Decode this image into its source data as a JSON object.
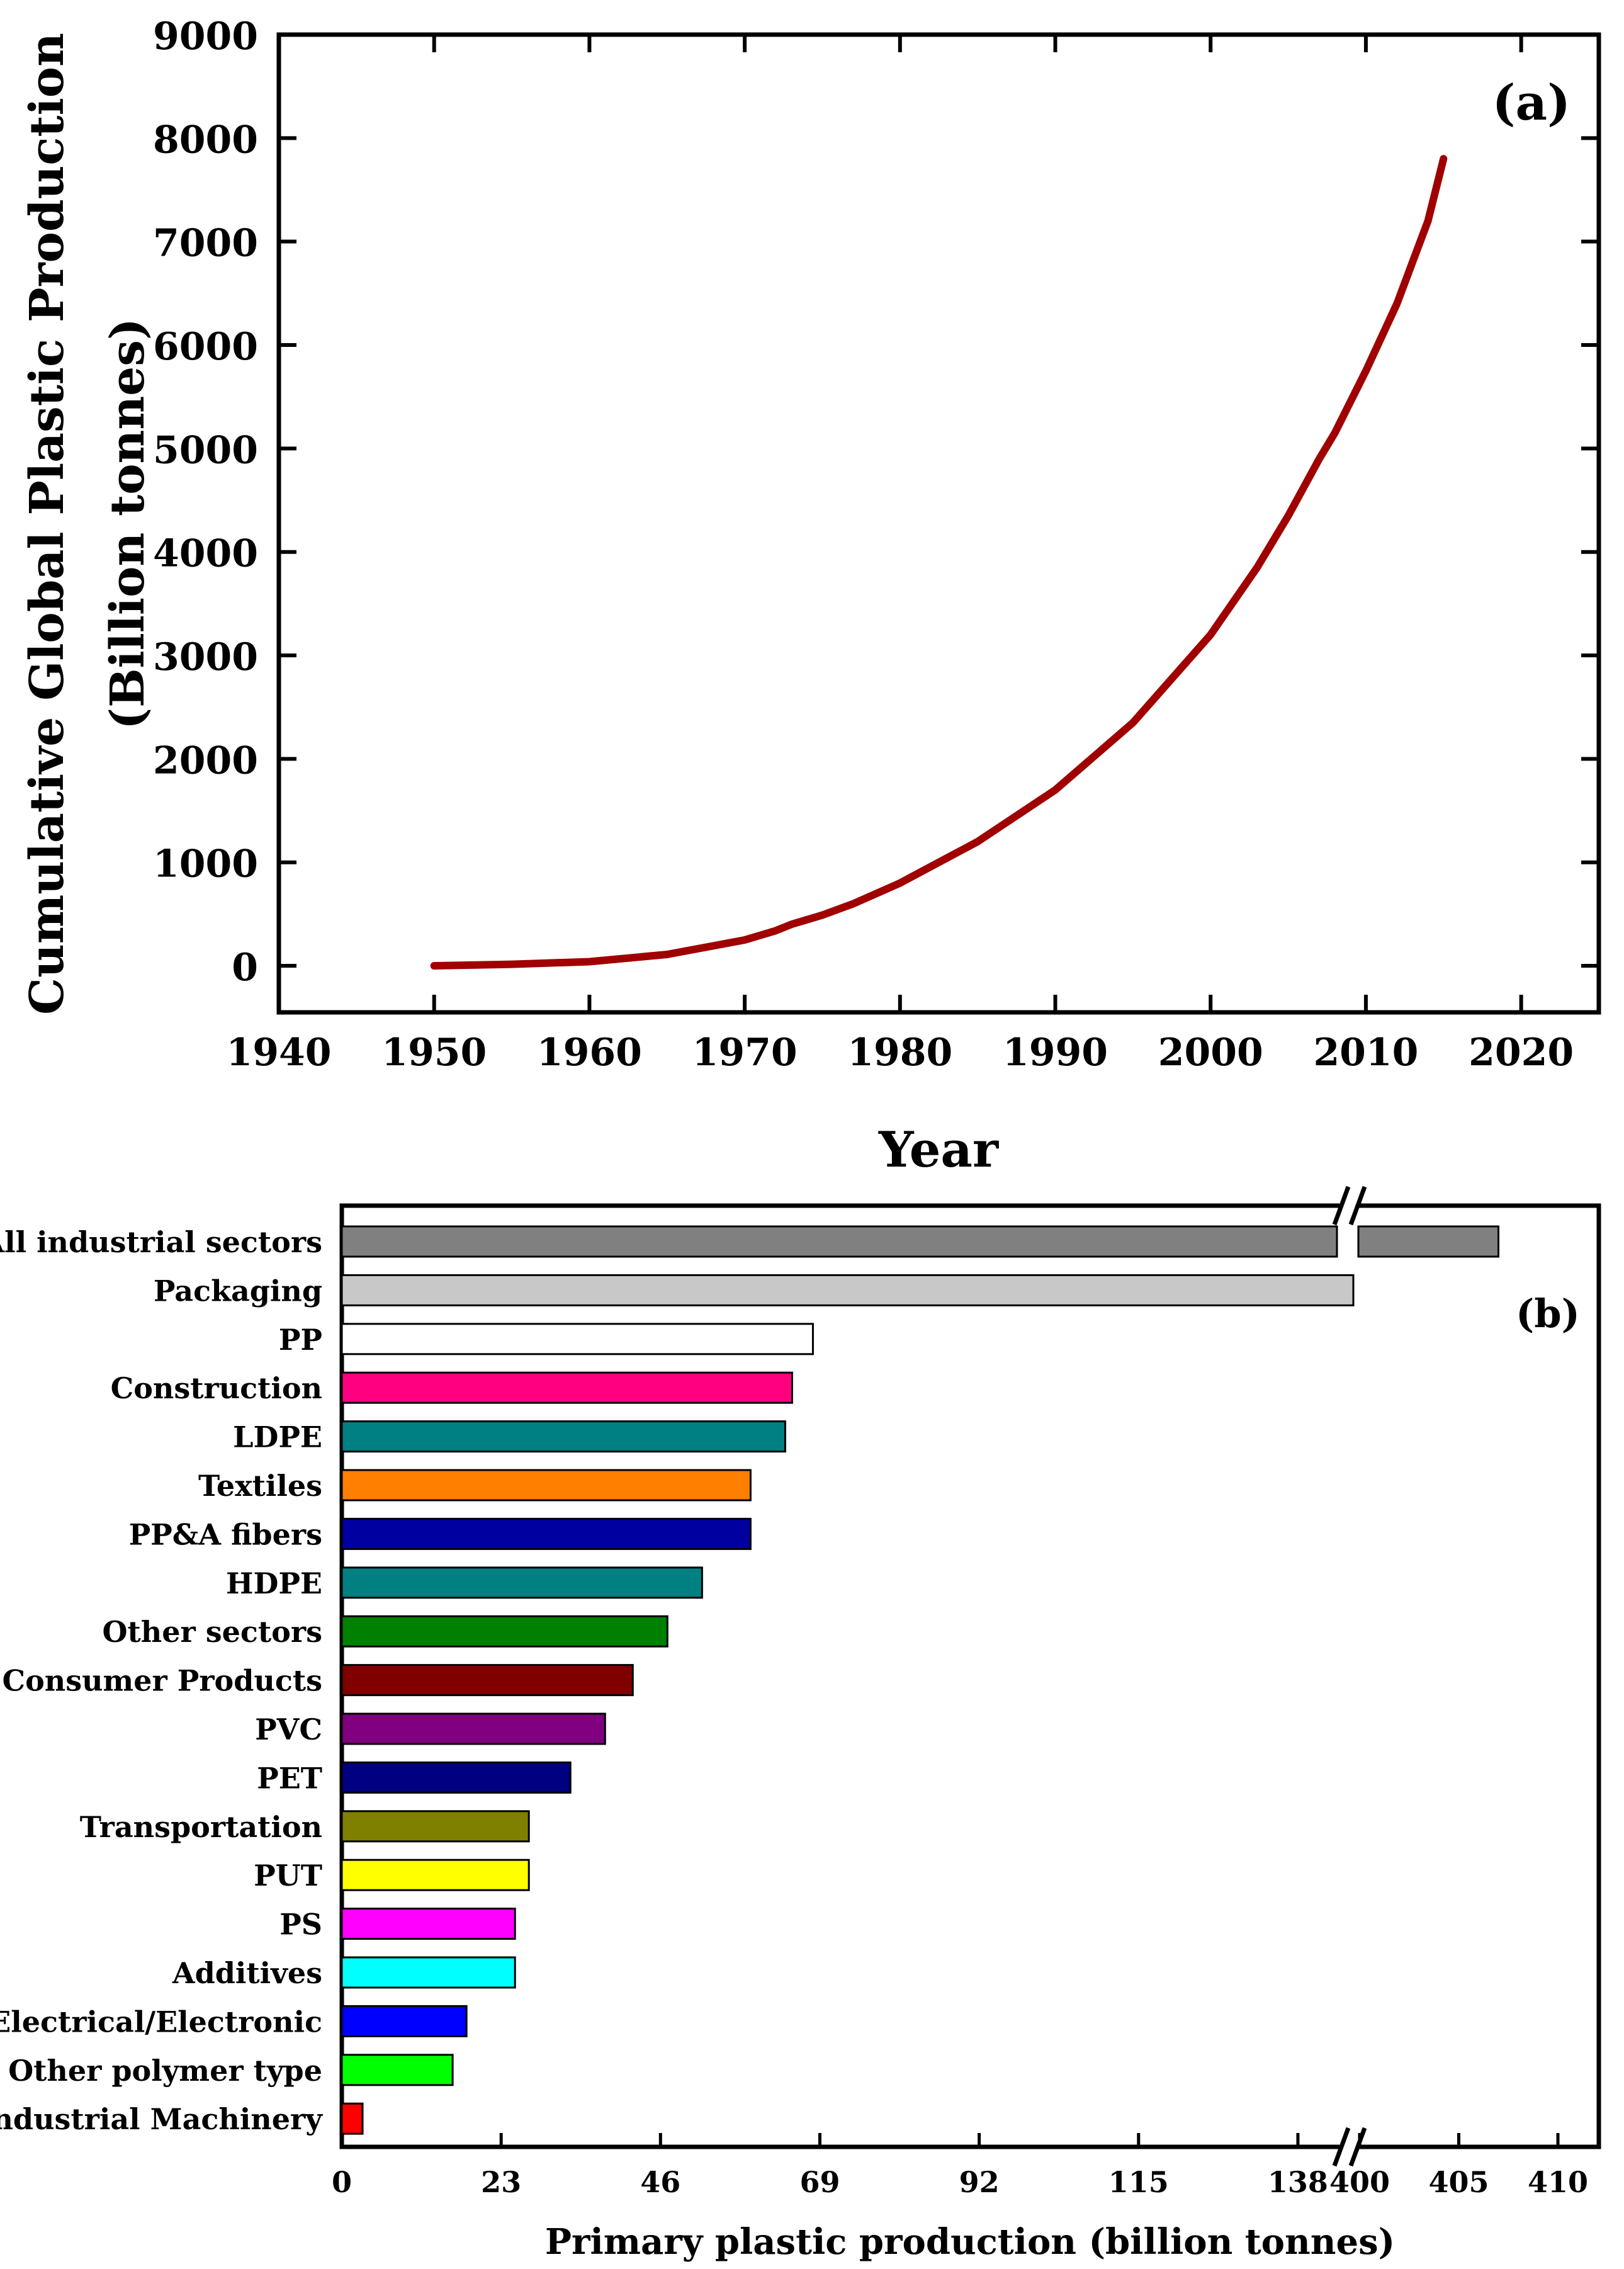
{
  "chart_data": [
    {
      "panel": "(a)",
      "type": "line",
      "title": "",
      "xlabel": "Year",
      "ylabel_line1": "Cumulative Global Plastic Production",
      "ylabel_line2": "(Billion tonnes)",
      "xlim": [
        1940,
        2025
      ],
      "ylim": [
        -450,
        9000
      ],
      "x_ticks": [
        1940,
        1950,
        1960,
        1970,
        1980,
        1990,
        2000,
        2010,
        2020
      ],
      "y_ticks": [
        0,
        1000,
        2000,
        3000,
        4000,
        5000,
        6000,
        7000,
        8000,
        9000
      ],
      "line_color": "#a00000",
      "series": [
        {
          "name": "Cumulative global plastic production",
          "x": [
            1950,
            1955,
            1960,
            1965,
            1970,
            1972,
            1973,
            1975,
            1977,
            1980,
            1985,
            1990,
            1995,
            2000,
            2003,
            2005,
            2007,
            2008,
            2010,
            2012,
            2014,
            2015
          ],
          "y": [
            0,
            15,
            40,
            110,
            250,
            340,
            400,
            490,
            600,
            800,
            1200,
            1700,
            2350,
            3200,
            3850,
            4350,
            4900,
            5150,
            5750,
            6400,
            7200,
            7800
          ]
        }
      ]
    },
    {
      "panel": "(b)",
      "type": "bar",
      "orientation": "horizontal",
      "xlabel": "Primary plastic production (billion tonnes)",
      "axis_break": {
        "from": 146,
        "to": 399
      },
      "x_ticks_lower": [
        0,
        23,
        46,
        69,
        92,
        115,
        138
      ],
      "x_ticks_upper": [
        400,
        405,
        410
      ],
      "categories": [
        "All industrial sectors",
        "Packaging",
        "PP",
        "Construction",
        "LDPE",
        "Textiles",
        "PP&A fibers",
        "HDPE",
        "Other sectors",
        "Consumer Products",
        "PVC",
        "PET",
        "Transportation",
        "PUT",
        "PS",
        "Additives",
        "Electrical/Electronic",
        "Other polymer type",
        "Industrial Machinery"
      ],
      "values": [
        407,
        146,
        68,
        65,
        64,
        59,
        59,
        52,
        47,
        42,
        38,
        33,
        27,
        27,
        25,
        25,
        18,
        16,
        3
      ],
      "colors": [
        "#808080",
        "#c8c8c8",
        "#ffffff",
        "#ff0080",
        "#008080",
        "#ff8000",
        "#0000a0",
        "#008080",
        "#008000",
        "#800000",
        "#800080",
        "#000080",
        "#808000",
        "#ffff00",
        "#ff00ff",
        "#00ffff",
        "#0000ff",
        "#00ff00",
        "#ff0000"
      ]
    }
  ]
}
